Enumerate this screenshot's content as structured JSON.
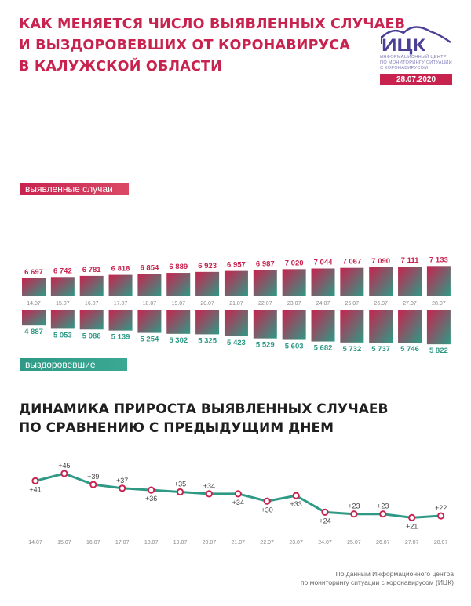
{
  "header": {
    "title_lines": [
      "КАК МЕНЯЕТСЯ ЧИСЛО ВЫЯВЛЕННЫХ СЛУЧАЕВ",
      "И ВЫЗДОРОВЕВШИХ ОТ КОРОНАВИРУСА",
      "В КАЛУЖСКОЙ ОБЛАСТИ"
    ]
  },
  "logo": {
    "abbr": "ИЦК",
    "org_lines": [
      "ИНФОРМАЦИОННЫЙ ЦЕНТР",
      "ПО МОНИТОРИНГУ СИТУАЦИИ",
      "С КОРОНАВИРУСОМ"
    ],
    "date": "28.07.2020"
  },
  "colors": {
    "accent": "#c8234f",
    "teal": "#2e9a86",
    "logo": "#4b3f96",
    "dates": "#888888"
  },
  "chart_data": [
    {
      "type": "bar",
      "categories": [
        "14.07",
        "15.07",
        "16.07",
        "17.07",
        "18.07",
        "19.07",
        "20.07",
        "21.07",
        "22.07",
        "23.07",
        "24.07",
        "25.07",
        "26.07",
        "27.07",
        "28.07"
      ],
      "series": [
        {
          "name": "выявленные случаи",
          "values": [
            6697,
            6742,
            6781,
            6818,
            6854,
            6889,
            6923,
            6957,
            6987,
            7020,
            7044,
            7067,
            7090,
            7111,
            7133
          ],
          "labels": [
            "6 697",
            "6 742",
            "6 781",
            "6 818",
            "6 854",
            "6 889",
            "6 923",
            "6 957",
            "6 987",
            "7 020",
            "7 044",
            "7 067",
            "7 090",
            "7 111",
            "7 133"
          ]
        },
        {
          "name": "выздоровевшие",
          "values": [
            4887,
            5053,
            5086,
            5139,
            5254,
            5302,
            5325,
            5423,
            5529,
            5603,
            5682,
            5732,
            5737,
            5746,
            5822
          ],
          "labels": [
            "4 887",
            "5 053",
            "5 086",
            "5 139",
            "5 254",
            "5 302",
            "5 325",
            "5 423",
            "5 529",
            "5 603",
            "5 682",
            "5 732",
            "5 737",
            "5 746",
            "5 822"
          ]
        }
      ]
    },
    {
      "type": "line",
      "title": "ДИНАМИКА ПРИРОСТА ВЫЯВЛЕННЫХ СЛУЧАЕВ ПО СРАВНЕНИЮ С ПРЕДЫДУЩИМ ДНЕМ",
      "title_lines": [
        "ДИНАМИКА ПРИРОСТА ВЫЯВЛЕННЫХ СЛУЧАЕВ",
        "ПО СРАВНЕНИЮ С ПРЕДЫДУЩИМ ДНЕМ"
      ],
      "categories": [
        "14.07",
        "15.07",
        "16.07",
        "17.07",
        "18.07",
        "19.07",
        "20.07",
        "21.07",
        "22.07",
        "23.07",
        "24.07",
        "25.07",
        "26.07",
        "27.07",
        "28.07"
      ],
      "values": [
        41,
        45,
        39,
        37,
        36,
        35,
        34,
        34,
        30,
        33,
        24,
        23,
        23,
        21,
        22
      ],
      "labels": [
        "+41",
        "+45",
        "+39",
        "+37",
        "+36",
        "+35",
        "+34",
        "+34",
        "+30",
        "+33",
        "+24",
        "+23",
        "+23",
        "+21",
        "+22"
      ],
      "label_position": [
        "below",
        "above",
        "above",
        "above",
        "below",
        "above",
        "above",
        "below",
        "below",
        "below",
        "below",
        "above",
        "above",
        "below",
        "above"
      ]
    }
  ],
  "footer": {
    "source_lines": [
      "По данным Информационного центра",
      "по мониторингу ситуации с коронавирусом (ИЦК)"
    ]
  }
}
